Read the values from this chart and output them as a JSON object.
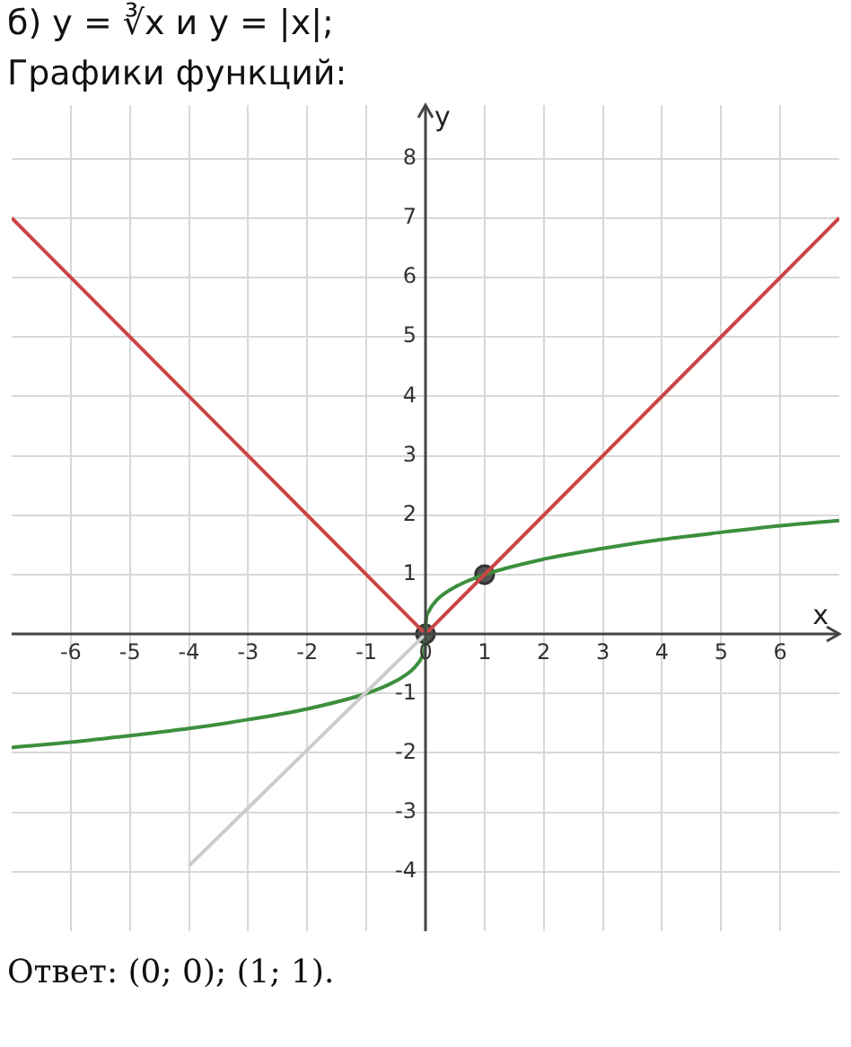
{
  "chart_data": {
    "type": "line",
    "title": "б) y = ∛x и y = |x|;",
    "subtitle": "Графики функций:",
    "xlabel": "x",
    "ylabel": "y",
    "annotations": [
      "Ответ: (0; 0); (1; 1)."
    ],
    "xlim": [
      -7,
      7
    ],
    "ylim": [
      -5,
      8.9
    ],
    "xticks": [
      -6,
      -5,
      -4,
      -3,
      -2,
      -1,
      0,
      1,
      2,
      3,
      4,
      5,
      6
    ],
    "yticks": [
      -4,
      -3,
      -2,
      -1,
      {
        "value": 0,
        "label": null
      },
      1,
      2,
      3,
      4,
      5,
      6,
      7,
      8
    ],
    "grid": true,
    "legend": false,
    "marker": "none",
    "line_style": "solid",
    "series": [
      {
        "color": "#cccccc",
        "x": [
          -4,
          0
        ],
        "values": [
          -3.9,
          0
        ]
      },
      {
        "color": "#cc4444",
        "x": [
          -7,
          0,
          7
        ],
        "values": [
          7,
          0,
          7
        ]
      },
      {
        "color": "#3d8f3d",
        "x": [
          -7,
          -6,
          -5,
          -4,
          -3,
          -2,
          -1,
          -0.5,
          -0.2,
          -0.05,
          -0.01,
          0,
          0.01,
          0.05,
          0.2,
          0.5,
          1,
          2,
          3,
          4,
          5,
          6,
          7
        ],
        "values": [
          -1.91,
          -1.82,
          -1.71,
          -1.59,
          -1.44,
          -1.26,
          -1,
          -0.79,
          -0.58,
          -0.37,
          -0.22,
          0,
          0.22,
          0.37,
          0.58,
          0.79,
          1,
          1.26,
          1.44,
          1.59,
          1.71,
          1.82,
          1.91
        ]
      },
      {
        "type": "scatter",
        "marker": "circle",
        "color": "#555555",
        "x": [
          0,
          1
        ],
        "values": [
          0,
          1
        ]
      }
    ]
  }
}
